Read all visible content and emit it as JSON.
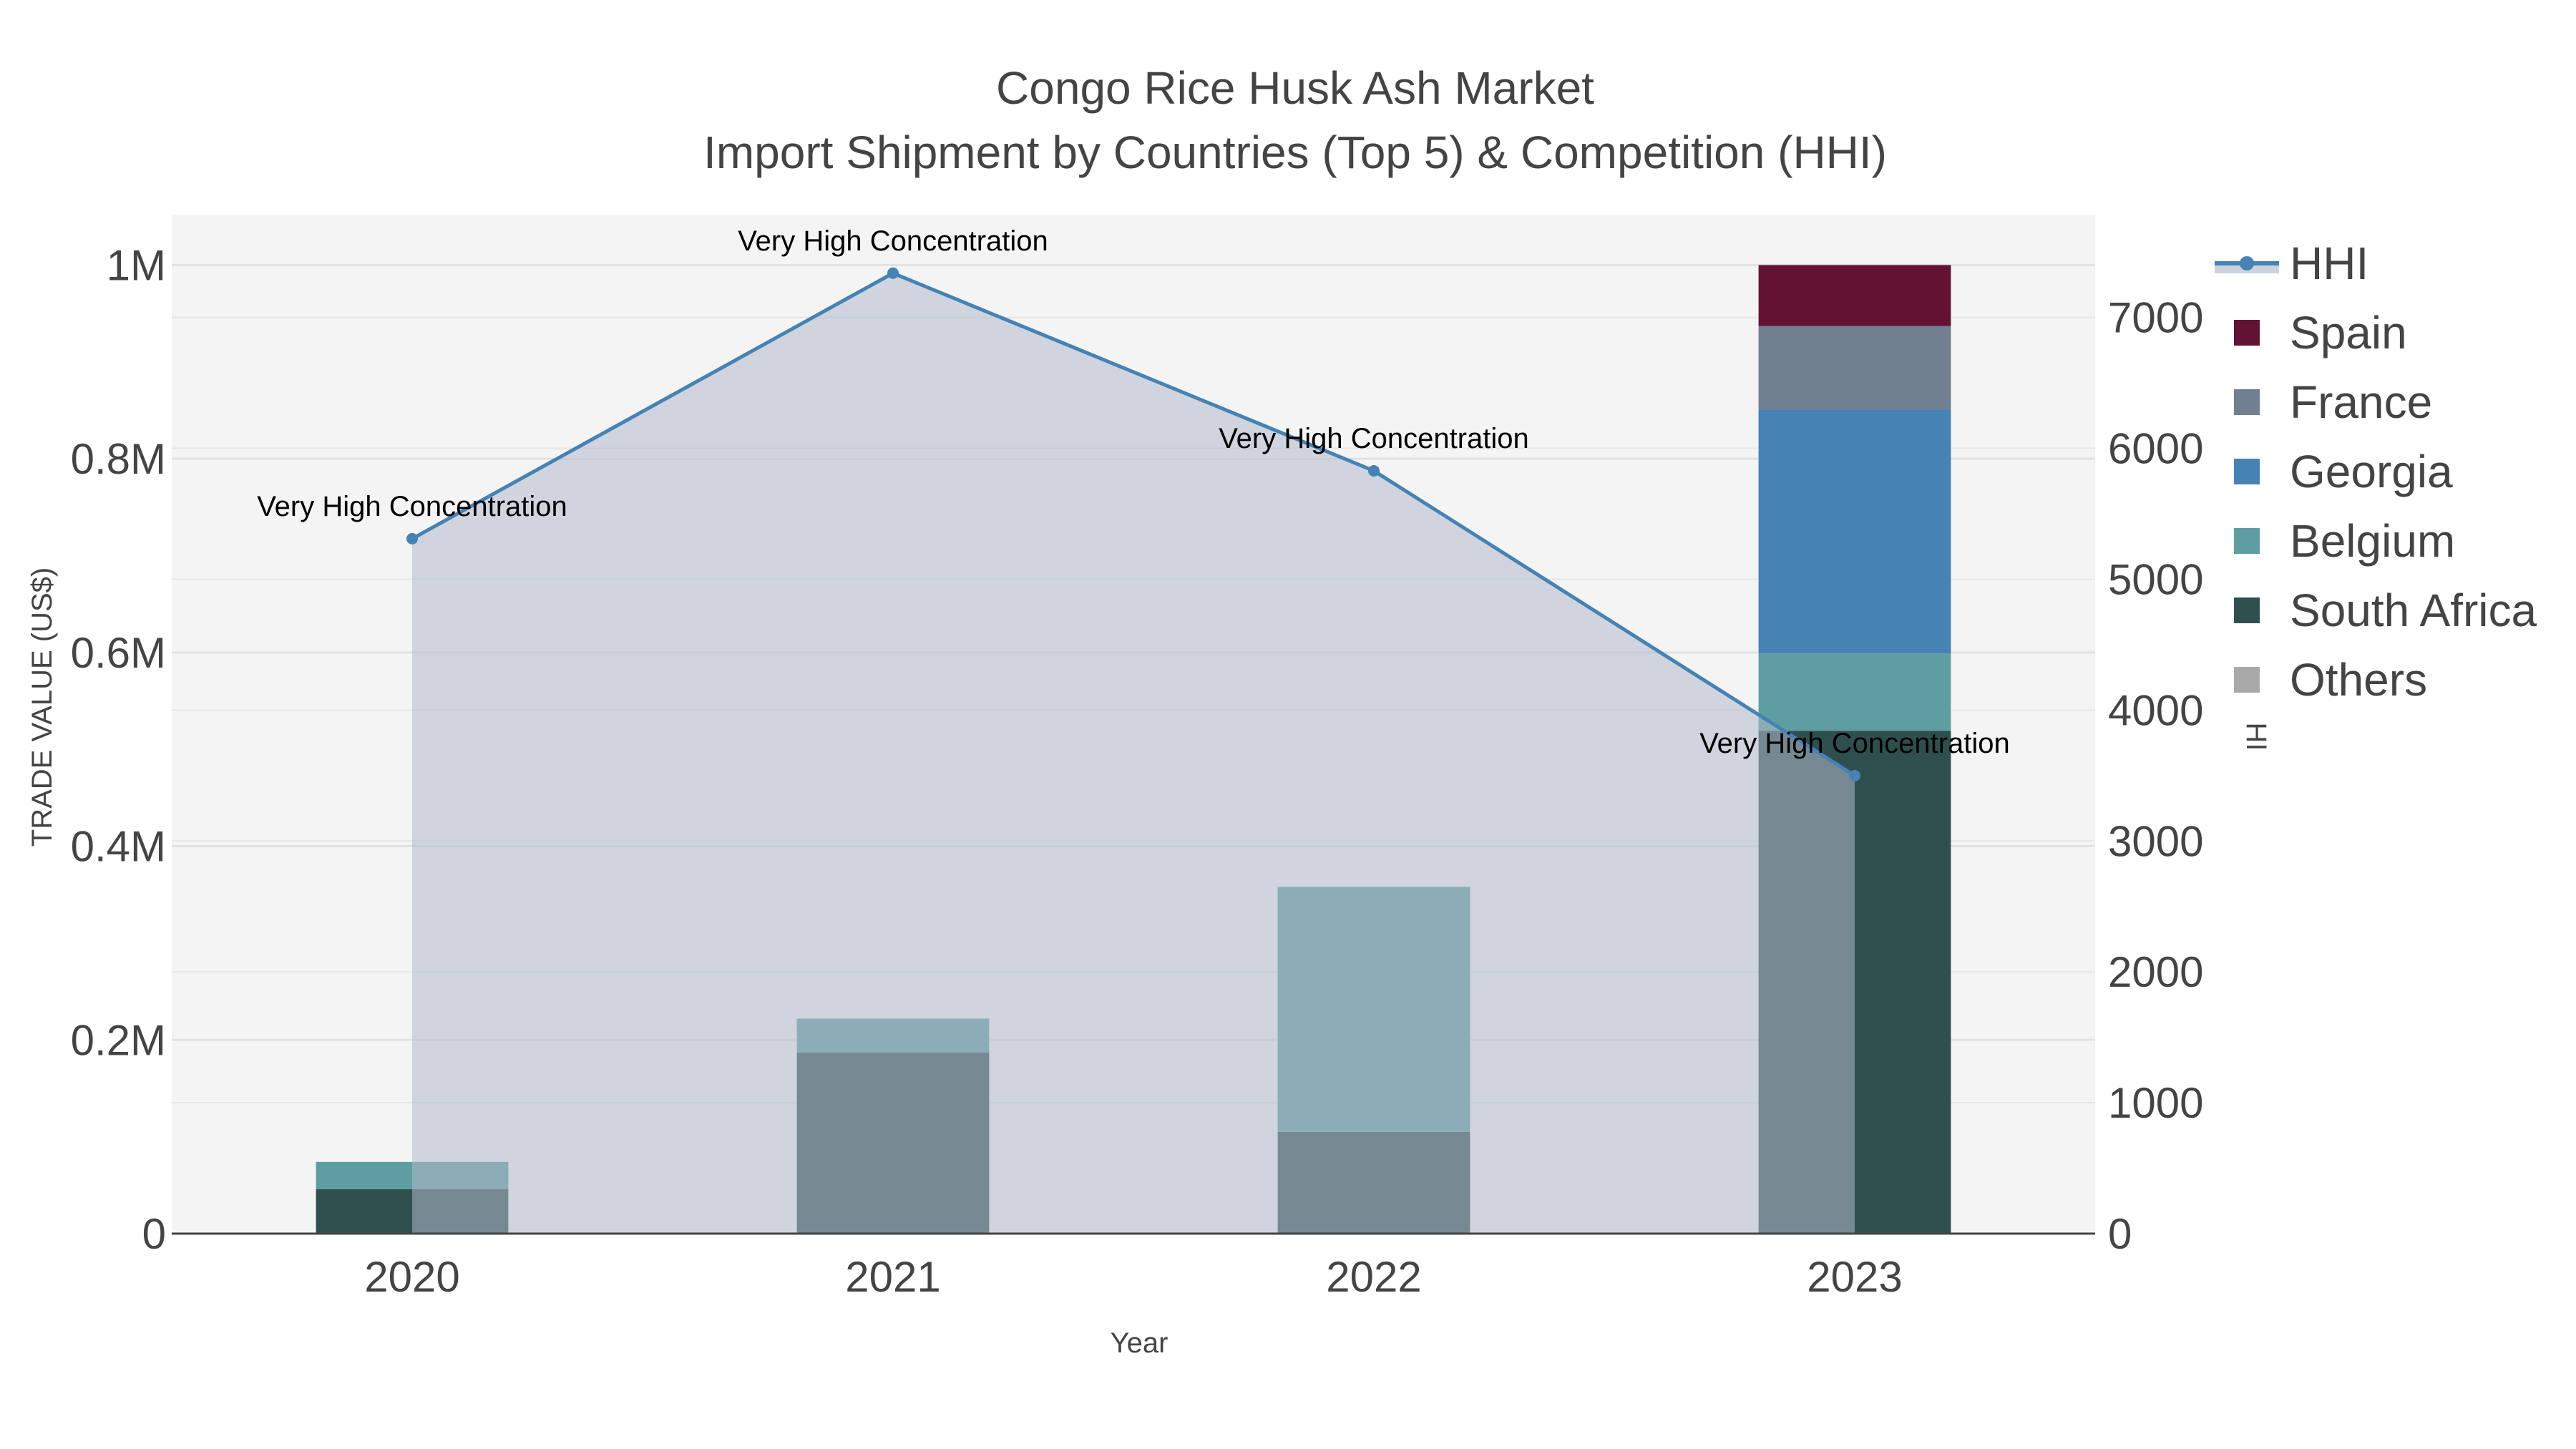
{
  "chart": {
    "title_line1": "Congo Rice Husk Ash Market",
    "title_line2": "Import Shipment by Countries (Top 5) & Competition (HHI)",
    "xaxis_title": "Year",
    "yaxis_left_title": "TRADE VALUE (US$)",
    "yaxis_right_title": "HHI",
    "left_ticks": [
      "0",
      "0.2M",
      "0.4M",
      "0.6M",
      "0.8M",
      "1M"
    ],
    "right_ticks": [
      "0",
      "1000",
      "2000",
      "3000",
      "4000",
      "5000",
      "6000",
      "7000"
    ],
    "x_ticks": [
      "2020",
      "2021",
      "2022",
      "2023"
    ],
    "annotations": [
      "Very High Concentration",
      "Very High Concentration",
      "Very High Concentration",
      "Very High Concentration"
    ],
    "legend": [
      {
        "name": "HHI",
        "color": "#4682B4",
        "type": "line"
      },
      {
        "name": "Spain",
        "color": "#621334",
        "type": "box"
      },
      {
        "name": "France",
        "color": "#708090",
        "type": "box"
      },
      {
        "name": "Georgia",
        "color": "#4682B4",
        "type": "box"
      },
      {
        "name": "Belgium",
        "color": "#5F9EA0",
        "type": "box"
      },
      {
        "name": "South Africa",
        "color": "#2F4F4F",
        "type": "box"
      },
      {
        "name": "Others",
        "color": "#A9A9A9",
        "type": "box"
      }
    ],
    "colors": {
      "plot_bg": "#F4F4F4",
      "grid": "#E2E2E2",
      "hhi_line": "#4682B4",
      "hhi_fill": "rgba(176,186,204,0.55)"
    }
  },
  "chart_data": {
    "type": "bar",
    "title": "Congo Rice Husk Ash Market — Import Shipment by Countries (Top 5) & Competition (HHI)",
    "xlabel": "Year",
    "ylabel": "TRADE VALUE (US$)",
    "y2label": "HHI",
    "categories": [
      "2020",
      "2021",
      "2022",
      "2023"
    ],
    "barmode": "stack",
    "ylim": [
      0,
      1052000
    ],
    "y2lim": [
      0,
      7785
    ],
    "series": [
      {
        "name": "South Africa",
        "color": "#2F4F4F",
        "values": [
          46000,
          187000,
          105000,
          519000
        ]
      },
      {
        "name": "Belgium",
        "color": "#5F9EA0",
        "values": [
          28000,
          35000,
          253000,
          80000
        ]
      },
      {
        "name": "Georgia",
        "color": "#4682B4",
        "values": [
          0,
          0,
          0,
          252000
        ]
      },
      {
        "name": "France",
        "color": "#708090",
        "values": [
          0,
          0,
          0,
          86000
        ]
      },
      {
        "name": "Spain",
        "color": "#621334",
        "values": [
          0,
          0,
          0,
          63000
        ]
      },
      {
        "name": "Others",
        "color": "#A9A9A9",
        "values": [
          0,
          0,
          0,
          0
        ]
      }
    ],
    "line_series": {
      "name": "HHI",
      "axis": "right",
      "type": "area-line",
      "color": "#4682B4",
      "values": [
        5309,
        7338,
        5828,
        3499
      ],
      "labels": [
        "Very High Concentration",
        "Very High Concentration",
        "Very High Concentration",
        "Very High Concentration"
      ]
    },
    "legend_position": "right",
    "grid": true
  }
}
